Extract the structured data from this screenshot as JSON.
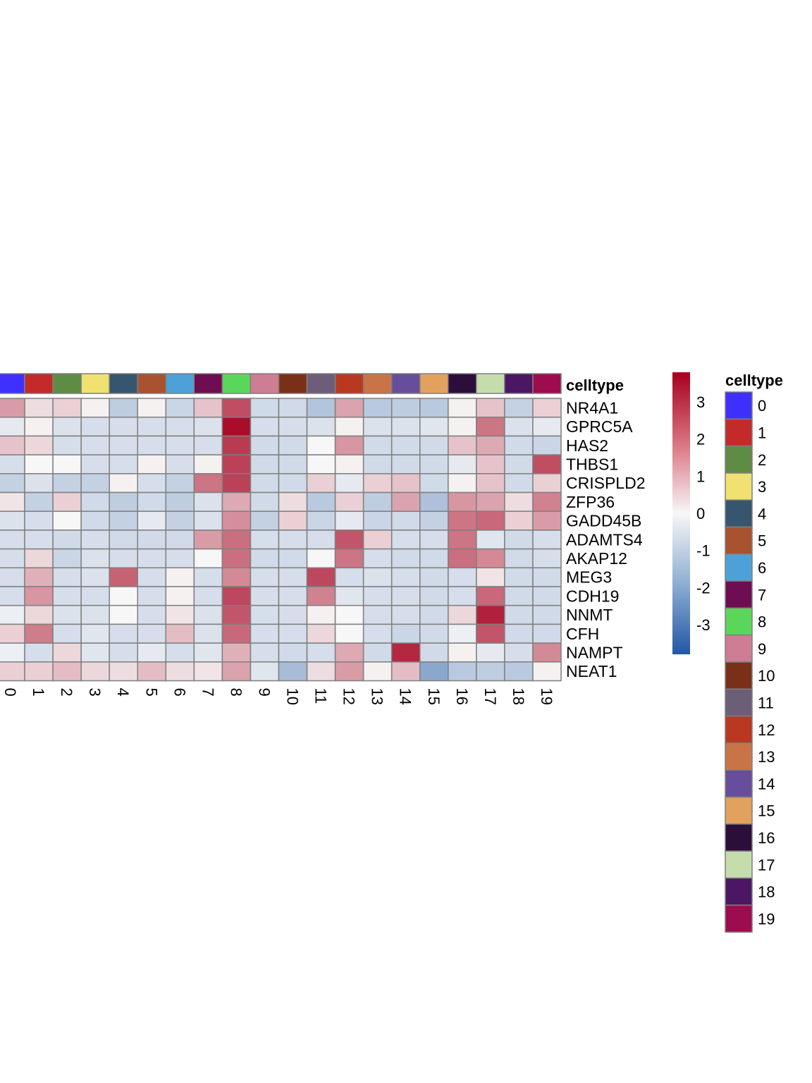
{
  "chart_data": {
    "type": "heatmap",
    "annotation_label": "celltype",
    "columns": [
      "0",
      "1",
      "2",
      "3",
      "4",
      "5",
      "6",
      "7",
      "8",
      "9",
      "10",
      "11",
      "12",
      "13",
      "14",
      "15",
      "16",
      "17",
      "18",
      "19"
    ],
    "rows": [
      "NR4A1",
      "GPRC5A",
      "HAS2",
      "THBS1",
      "CRISPLD2",
      "ZFP36",
      "GADD45B",
      "ADAMTS4",
      "AKAP12",
      "MEG3",
      "CDH19",
      "NNMT",
      "CFH",
      "NAMPT",
      "NEAT1"
    ],
    "values": [
      [
        1.4,
        0.4,
        0.6,
        0.1,
        -1.0,
        0.1,
        -0.8,
        0.8,
        2.6,
        -0.7,
        -0.7,
        -1.2,
        1.3,
        -1.1,
        -1.0,
        -1.1,
        0.1,
        0.8,
        -0.9,
        0.6
      ],
      [
        -0.3,
        0.1,
        -0.5,
        -0.6,
        -0.6,
        -0.6,
        -0.6,
        -0.5,
        3.6,
        -0.6,
        -0.6,
        -0.5,
        0.1,
        -0.5,
        -0.5,
        -0.4,
        0.1,
        2.0,
        -0.5,
        -0.3
      ],
      [
        0.8,
        0.5,
        -0.6,
        -0.6,
        -0.6,
        -0.6,
        -0.6,
        -0.6,
        2.9,
        -0.7,
        -0.7,
        0.0,
        1.5,
        -0.7,
        -0.7,
        -0.7,
        0.8,
        1.2,
        -0.7,
        -0.8
      ],
      [
        -0.6,
        0.0,
        0.0,
        -0.6,
        -0.6,
        0.1,
        -0.6,
        0.1,
        2.8,
        -0.7,
        -0.7,
        0.0,
        0.1,
        -0.7,
        -0.7,
        -0.7,
        -0.3,
        0.8,
        -0.7,
        2.6
      ],
      [
        -0.9,
        -0.5,
        -0.9,
        -0.9,
        0.1,
        -0.6,
        -0.9,
        2.0,
        2.8,
        -0.7,
        -0.7,
        0.6,
        -0.3,
        0.6,
        0.8,
        -0.7,
        0.1,
        0.8,
        -0.7,
        0.6
      ],
      [
        0.3,
        -0.9,
        0.6,
        -0.7,
        -1.0,
        -0.7,
        -1.0,
        -0.5,
        1.2,
        -0.7,
        0.4,
        -1.1,
        0.6,
        -1.0,
        1.3,
        -1.3,
        1.5,
        1.3,
        0.4,
        1.8
      ],
      [
        -0.5,
        -0.6,
        0.0,
        -0.7,
        -0.9,
        -0.3,
        -0.9,
        -0.5,
        1.6,
        -0.9,
        0.6,
        -0.8,
        -0.3,
        -0.8,
        -0.7,
        -0.9,
        2.0,
        2.2,
        0.6,
        1.4
      ],
      [
        -0.6,
        -0.6,
        -0.7,
        -0.6,
        -0.7,
        -0.7,
        -0.7,
        1.4,
        2.1,
        -0.6,
        -0.6,
        -0.6,
        2.5,
        0.6,
        -0.6,
        -0.6,
        2.0,
        -0.4,
        -0.7,
        -0.6
      ],
      [
        -0.6,
        0.5,
        -0.8,
        -0.5,
        -0.6,
        -0.6,
        -0.6,
        0.0,
        2.1,
        -0.7,
        -0.7,
        0.0,
        2.0,
        -0.6,
        -0.7,
        -0.7,
        2.1,
        1.7,
        -0.7,
        -0.6
      ],
      [
        -0.6,
        1.1,
        -0.6,
        -0.5,
        2.3,
        -0.6,
        0.1,
        -0.6,
        1.7,
        -0.6,
        -0.6,
        2.7,
        -0.6,
        -0.5,
        -0.6,
        -0.7,
        -0.6,
        0.3,
        -0.7,
        -0.7
      ],
      [
        -0.6,
        1.5,
        -0.6,
        -0.6,
        0.0,
        -0.6,
        0.1,
        -0.6,
        2.7,
        -0.6,
        -0.6,
        1.8,
        -0.4,
        -0.6,
        -0.6,
        -0.7,
        -0.6,
        2.2,
        -0.7,
        -0.7
      ],
      [
        -0.2,
        0.5,
        -0.5,
        -0.5,
        0.0,
        -0.6,
        0.3,
        -0.5,
        2.5,
        -0.6,
        -0.6,
        0.1,
        0.0,
        -0.6,
        -0.6,
        -0.7,
        0.5,
        3.3,
        -0.7,
        -0.7
      ],
      [
        0.6,
        1.9,
        -0.6,
        -0.4,
        -0.6,
        -0.6,
        0.9,
        -0.5,
        2.2,
        -0.6,
        -0.6,
        0.5,
        0.0,
        -0.6,
        -0.8,
        -0.7,
        -0.2,
        2.5,
        -0.7,
        -0.7
      ],
      [
        -0.2,
        -0.6,
        0.5,
        -0.4,
        -0.6,
        -0.3,
        -0.6,
        -0.4,
        1.1,
        -0.6,
        -0.7,
        -0.6,
        1.2,
        -0.7,
        3.2,
        -0.7,
        0.1,
        -0.3,
        -0.6,
        1.7
      ],
      [
        0.6,
        0.6,
        0.9,
        0.5,
        0.4,
        0.9,
        0.4,
        0.3,
        1.3,
        -0.4,
        -1.4,
        0.4,
        1.4,
        0.1,
        0.9,
        -1.9,
        -1.1,
        -1.0,
        -1.1,
        0.1
      ]
    ],
    "colorbar": {
      "min": -3.8,
      "max": 3.8,
      "ticks": [
        "3",
        "2",
        "1",
        "0",
        "-1",
        "-2",
        "-3"
      ],
      "low_color": "#2157a4",
      "mid_color": "#f7f7f7",
      "high_color": "#a6001f"
    },
    "celltype_colors": [
      "#4030ff",
      "#c42a2a",
      "#5e8c45",
      "#f0e170",
      "#37556e",
      "#a9522f",
      "#4ea0d8",
      "#6e0d52",
      "#5ad65a",
      "#ce7d94",
      "#7a3018",
      "#6c5e78",
      "#b8391f",
      "#c97446",
      "#674e9c",
      "#e2a25d",
      "#2b0f3a",
      "#c5dcad",
      "#4b1763",
      "#9d0c4f"
    ]
  }
}
